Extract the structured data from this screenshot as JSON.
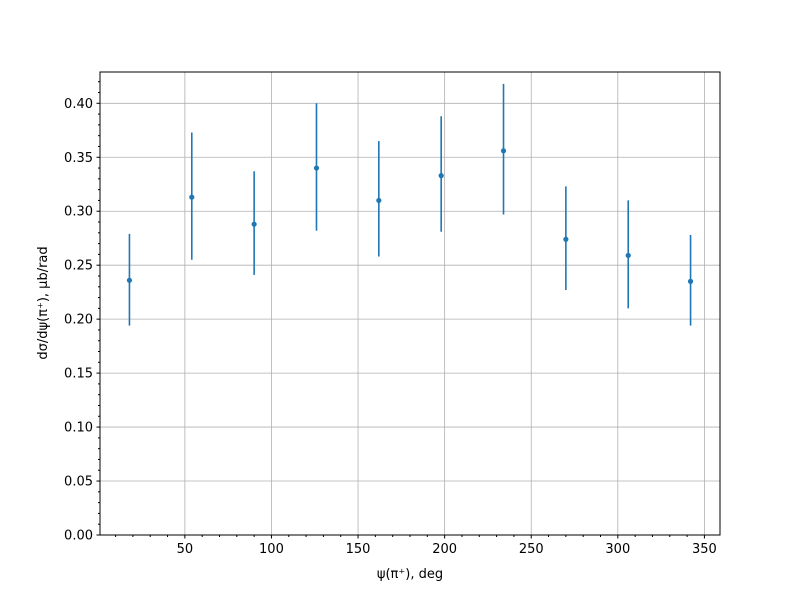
{
  "chart_data": {
    "type": "scatter",
    "title": "",
    "xlabel": "ψ(π⁺), deg",
    "ylabel": "dσ/dψ(π⁺), μb/rad",
    "xlim": [
      1,
      359
    ],
    "ylim": [
      0,
      0.429
    ],
    "grid": true,
    "color": "#1f77b4",
    "x_ticks": [
      50,
      100,
      150,
      200,
      250,
      300,
      350
    ],
    "x_tick_labels": [
      "50",
      "100",
      "150",
      "200",
      "250",
      "300",
      "350"
    ],
    "y_ticks": [
      0,
      0.05,
      0.1,
      0.15,
      0.2,
      0.25,
      0.3,
      0.35,
      0.4
    ],
    "y_tick_labels": [
      "0.00",
      "0.05",
      "0.10",
      "0.15",
      "0.20",
      "0.25",
      "0.30",
      "0.35",
      "0.40"
    ],
    "x": [
      18,
      54,
      90,
      126,
      162,
      198,
      234,
      270,
      306,
      342
    ],
    "y": [
      0.236,
      0.313,
      0.288,
      0.34,
      0.31,
      0.333,
      0.356,
      0.274,
      0.259,
      0.235
    ],
    "yerr_low": [
      0.042,
      0.058,
      0.047,
      0.058,
      0.052,
      0.052,
      0.059,
      0.047,
      0.049,
      0.041
    ],
    "yerr_high": [
      0.043,
      0.06,
      0.049,
      0.06,
      0.055,
      0.055,
      0.062,
      0.049,
      0.051,
      0.043
    ]
  }
}
